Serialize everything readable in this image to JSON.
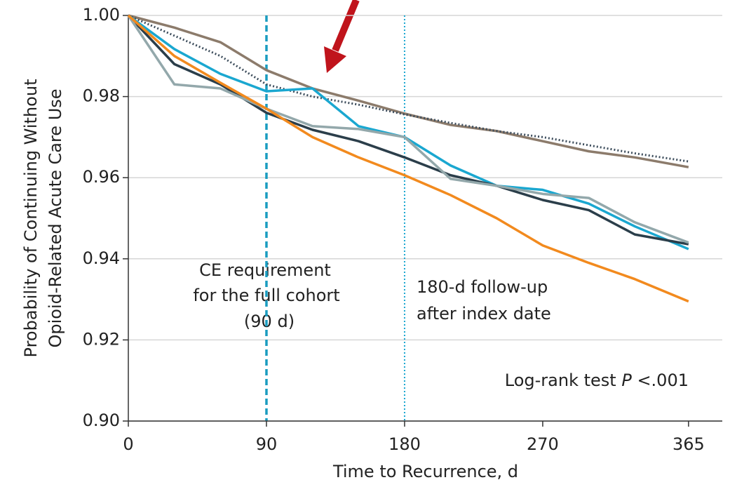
{
  "chart_data": {
    "type": "line",
    "xlabel": "Time to Recurrence, d",
    "ylabel": [
      "Probability of Continuing Without",
      "Opioid-Related Acute Care Use"
    ],
    "x": [
      0,
      30,
      60,
      90,
      120,
      150,
      180,
      210,
      240,
      270,
      300,
      330,
      365
    ],
    "series": [
      {
        "color": "#8c7b6b",
        "style": "solid",
        "values": [
          1.0,
          0.997,
          0.9934,
          0.9865,
          0.982,
          0.979,
          0.9758,
          0.973,
          0.9715,
          0.969,
          0.9665,
          0.965,
          0.9626
        ]
      },
      {
        "color": "#3d4d5c",
        "style": "dotted",
        "values": [
          1.0,
          0.995,
          0.99,
          0.983,
          0.98,
          0.978,
          0.9756,
          0.9735,
          0.9715,
          0.97,
          0.968,
          0.966,
          0.964
        ]
      },
      {
        "color": "#1aa7d0",
        "style": "solid",
        "values": [
          1.0,
          0.9917,
          0.9856,
          0.9813,
          0.982,
          0.9727,
          0.97,
          0.963,
          0.958,
          0.957,
          0.9536,
          0.948,
          0.9424
        ]
      },
      {
        "color": "#2b3e4a",
        "style": "solid",
        "values": [
          1.0,
          0.988,
          0.983,
          0.976,
          0.9718,
          0.969,
          0.965,
          0.9606,
          0.958,
          0.9545,
          0.952,
          0.946,
          0.9436
        ]
      },
      {
        "color": "#93a8ab",
        "style": "solid",
        "values": [
          1.0,
          0.983,
          0.982,
          0.977,
          0.9727,
          0.972,
          0.97,
          0.9597,
          0.958,
          0.956,
          0.955,
          0.949,
          0.944
        ]
      },
      {
        "color": "#f28a1e",
        "style": "solid",
        "values": [
          1.0,
          0.99,
          0.9834,
          0.977,
          0.97,
          0.965,
          0.9606,
          0.9557,
          0.95,
          0.9433,
          0.939,
          0.935,
          0.9295
        ]
      }
    ],
    "xlim": [
      0,
      387
    ],
    "ylim": [
      0.9,
      1.0
    ],
    "xticks": [
      0,
      90,
      180,
      270,
      365
    ],
    "yticks": [
      {
        "value": 0.9,
        "label": "0.90"
      },
      0.92,
      0.94,
      0.96,
      0.98,
      {
        "value": 1.0,
        "label": "1.00"
      }
    ],
    "grid": true,
    "reference_lines": [
      {
        "x": 90,
        "color": "#1a9cc0",
        "style": "dashed"
      },
      {
        "x": 180,
        "color": "#1aa7d0",
        "style": "dotted"
      }
    ],
    "annotations": {
      "ce": [
        "CE requirement",
        "for the full cohort",
        "(90 d)"
      ],
      "followup": [
        "180-d follow-up",
        "after index date"
      ],
      "logrank": [
        "Log-rank test ",
        "P",
        " <.001"
      ]
    }
  }
}
